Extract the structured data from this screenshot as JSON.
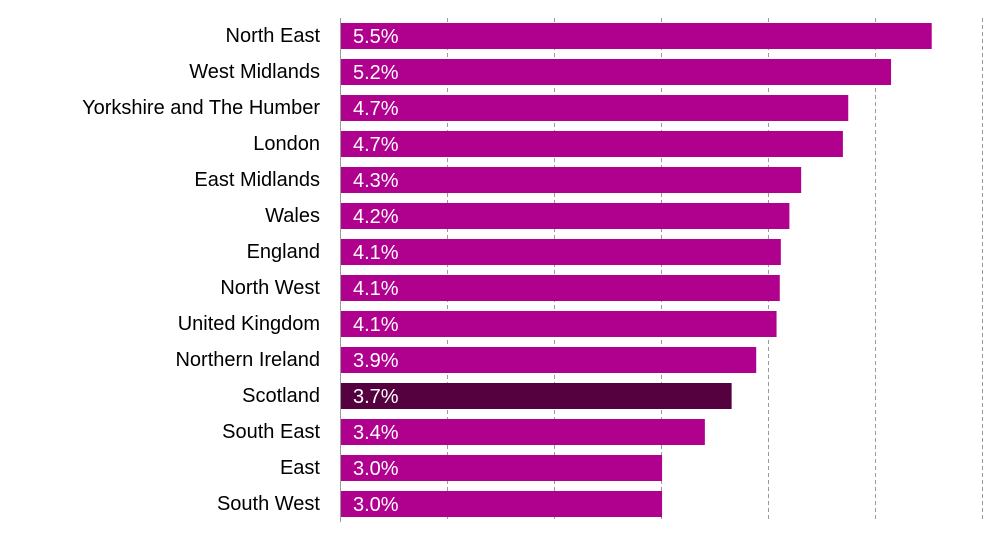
{
  "chart_data": {
    "type": "bar",
    "orientation": "horizontal",
    "categories": [
      "North East",
      "West Midlands",
      "Yorkshire and The Humber",
      "London",
      "East Midlands",
      "Wales",
      "England",
      "North West",
      "United Kingdom",
      "Northern Ireland",
      "Scotland",
      "South East",
      "East",
      "South West"
    ],
    "values": [
      5.53,
      5.15,
      4.75,
      4.7,
      4.31,
      4.2,
      4.12,
      4.11,
      4.08,
      3.89,
      3.66,
      3.41,
      3.01,
      3.01
    ],
    "data_labels": [
      "5.5%",
      "5.2%",
      "4.7%",
      "4.7%",
      "4.3%",
      "4.2%",
      "4.1%",
      "4.1%",
      "4.1%",
      "3.9%",
      "3.7%",
      "3.4%",
      "3.0%",
      "3.0%"
    ],
    "highlight": "Scotland",
    "xlim": [
      0,
      6
    ],
    "x_gridlines": [
      1,
      2,
      3,
      4,
      5,
      6
    ],
    "grid": true,
    "legend": "none",
    "title": "",
    "xlabel": "",
    "ylabel": "",
    "colors": {
      "bar": "#b0008e",
      "highlight": "#55003f",
      "grid": "#9a9a9a",
      "axis": "#9a9a9a"
    }
  }
}
